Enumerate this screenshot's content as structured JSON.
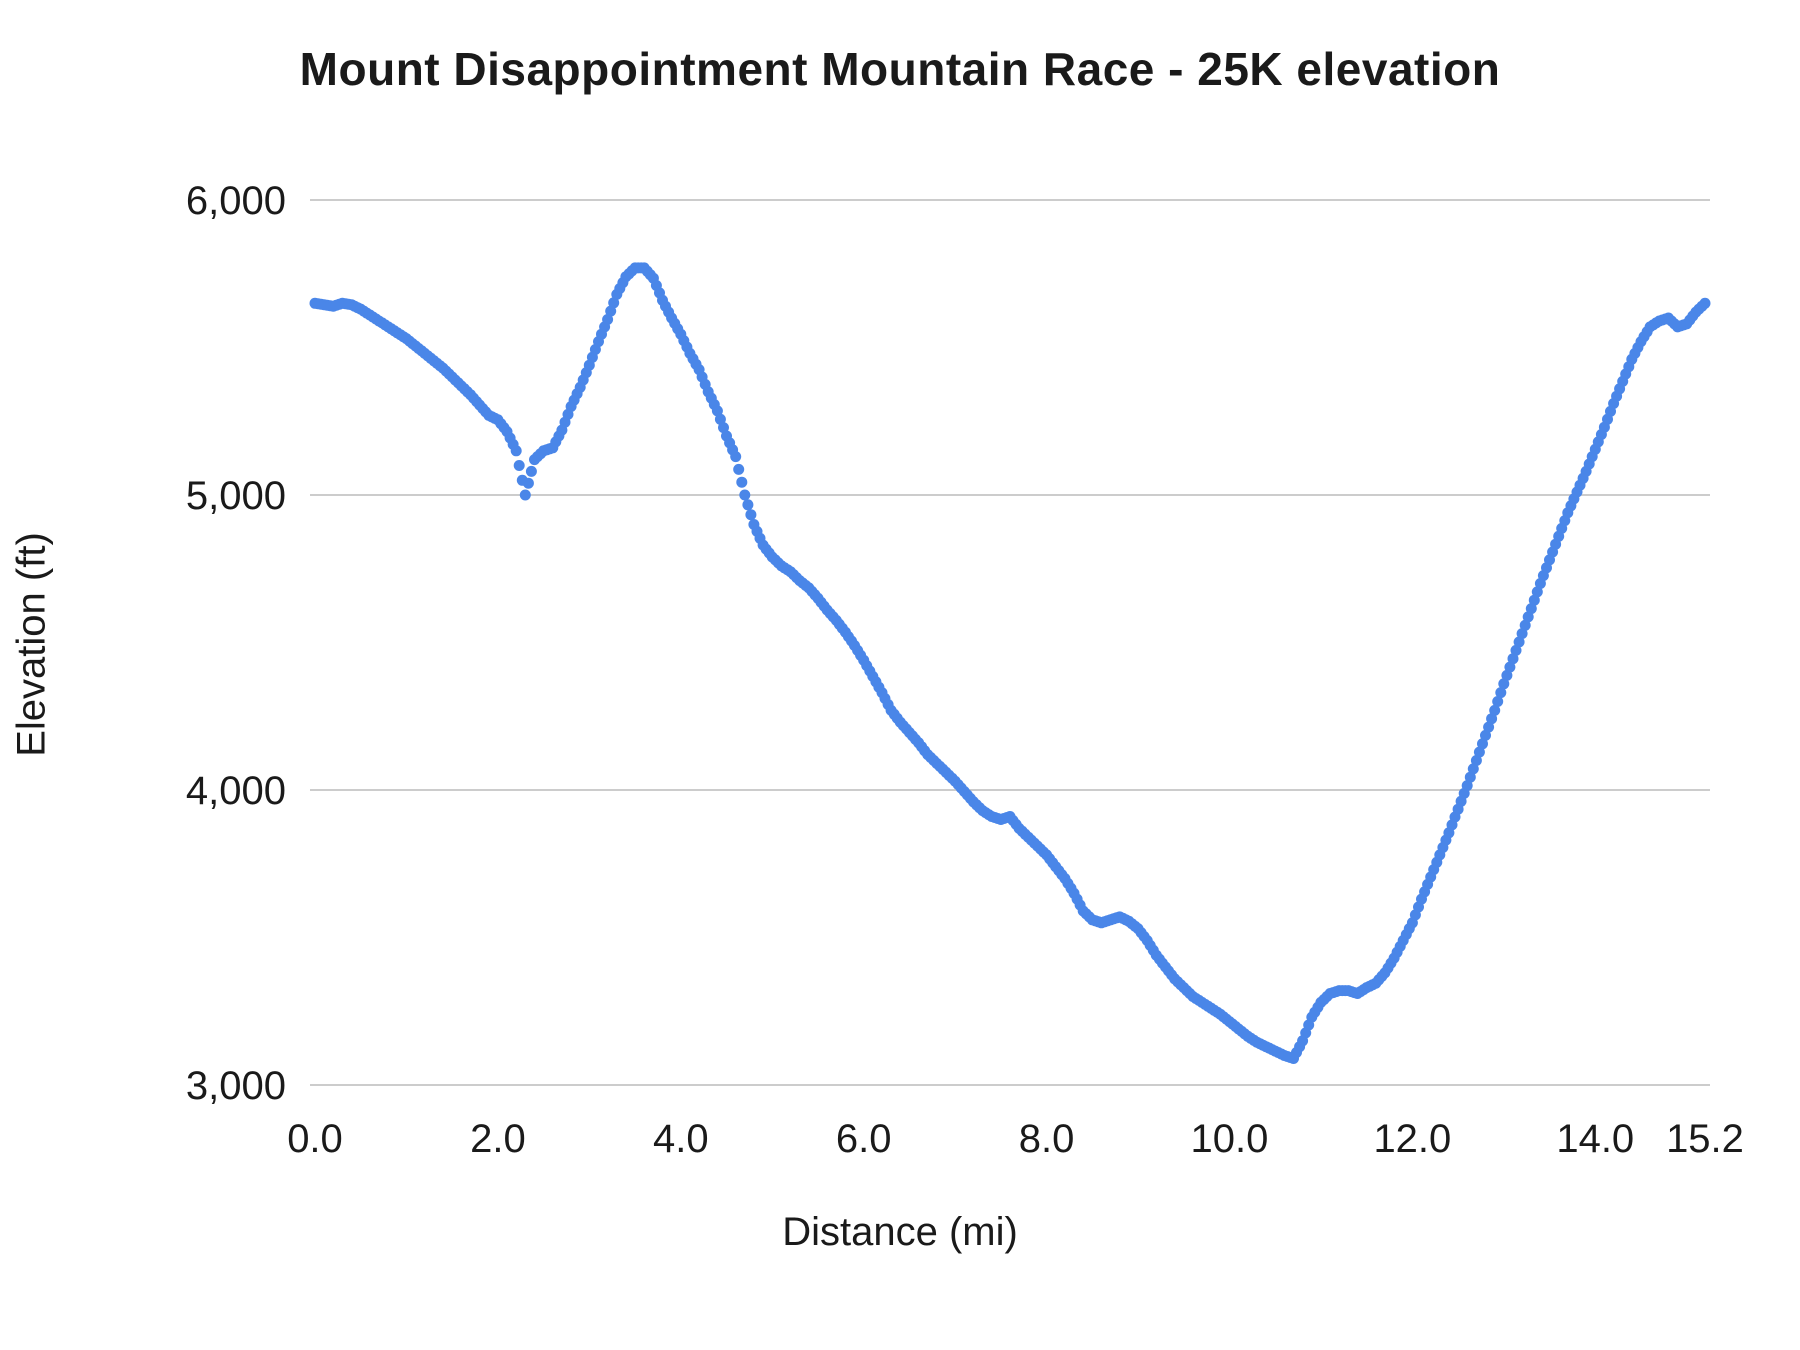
{
  "page": {
    "background": "#ffffff"
  },
  "chart_data": {
    "type": "scatter",
    "title": "Mount Disappointment Mountain Race - 25K elevation",
    "xlabel": "Distance (mi)",
    "ylabel": "Elevation (ft)",
    "xlim": [
      0,
      15.2
    ],
    "ylim": [
      3000,
      6000
    ],
    "grid": "horizontal",
    "legend": "none",
    "point_color": "#4a86e8",
    "gridline_color": "#cccccc",
    "text_color": "#1a1a1a",
    "x_ticks": {
      "values": [
        0,
        2,
        4,
        6,
        8,
        10,
        12,
        14,
        15.2
      ],
      "labels": [
        "0.0",
        "2.0",
        "4.0",
        "6.0",
        "8.0",
        "10.0",
        "12.0",
        "14.0",
        "15.2"
      ]
    },
    "y_ticks": {
      "values": [
        3000,
        4000,
        5000,
        6000
      ],
      "labels": [
        "3,000",
        "4,000",
        "5,000",
        "6,000"
      ]
    },
    "x": [
      0.0,
      0.1,
      0.2,
      0.3,
      0.4,
      0.5,
      0.6,
      0.7,
      0.8,
      0.9,
      1.0,
      1.1,
      1.2,
      1.3,
      1.4,
      1.5,
      1.6,
      1.7,
      1.8,
      1.9,
      2.0,
      2.1,
      2.2,
      2.3,
      2.4,
      2.5,
      2.6,
      2.7,
      2.8,
      2.9,
      3.0,
      3.1,
      3.2,
      3.3,
      3.4,
      3.5,
      3.6,
      3.7,
      3.8,
      3.9,
      4.0,
      4.1,
      4.2,
      4.3,
      4.4,
      4.5,
      4.6,
      4.7,
      4.8,
      4.9,
      5.0,
      5.1,
      5.2,
      5.3,
      5.4,
      5.5,
      5.6,
      5.7,
      5.8,
      5.9,
      6.0,
      6.1,
      6.2,
      6.3,
      6.4,
      6.5,
      6.6,
      6.7,
      6.8,
      6.9,
      7.0,
      7.1,
      7.2,
      7.3,
      7.4,
      7.5,
      7.6,
      7.7,
      7.8,
      7.9,
      8.0,
      8.1,
      8.2,
      8.3,
      8.4,
      8.5,
      8.6,
      8.7,
      8.8,
      8.9,
      9.0,
      9.1,
      9.2,
      9.3,
      9.4,
      9.5,
      9.6,
      9.7,
      9.8,
      9.9,
      10.0,
      10.1,
      10.2,
      10.3,
      10.4,
      10.5,
      10.6,
      10.7,
      10.8,
      10.9,
      11.0,
      11.1,
      11.2,
      11.3,
      11.4,
      11.5,
      11.6,
      11.7,
      11.8,
      11.9,
      12.0,
      12.1,
      12.2,
      12.3,
      12.4,
      12.5,
      12.6,
      12.7,
      12.8,
      12.9,
      13.0,
      13.1,
      13.2,
      13.3,
      13.4,
      13.5,
      13.6,
      13.7,
      13.8,
      13.9,
      14.0,
      14.1,
      14.2,
      14.3,
      14.4,
      14.5,
      14.6,
      14.7,
      14.8,
      14.9,
      15.0,
      15.1,
      15.2
    ],
    "elevation": [
      5650,
      5645,
      5640,
      5650,
      5645,
      5630,
      5610,
      5590,
      5570,
      5550,
      5530,
      5505,
      5480,
      5455,
      5430,
      5400,
      5370,
      5340,
      5305,
      5270,
      5255,
      5215,
      5150,
      5000,
      5120,
      5150,
      5160,
      5220,
      5300,
      5365,
      5440,
      5520,
      5595,
      5680,
      5740,
      5770,
      5770,
      5735,
      5660,
      5600,
      5545,
      5480,
      5425,
      5350,
      5285,
      5200,
      5130,
      5000,
      4900,
      4830,
      4790,
      4760,
      4740,
      4710,
      4685,
      4650,
      4610,
      4575,
      4535,
      4490,
      4440,
      4385,
      4330,
      4270,
      4230,
      4195,
      4160,
      4120,
      4090,
      4060,
      4030,
      3995,
      3960,
      3930,
      3910,
      3900,
      3910,
      3870,
      3840,
      3810,
      3780,
      3740,
      3700,
      3650,
      3590,
      3560,
      3550,
      3560,
      3570,
      3555,
      3530,
      3490,
      3440,
      3400,
      3360,
      3330,
      3300,
      3280,
      3260,
      3240,
      3215,
      3190,
      3165,
      3145,
      3130,
      3115,
      3100,
      3090,
      3150,
      3230,
      3280,
      3310,
      3320,
      3320,
      3310,
      3330,
      3345,
      3380,
      3430,
      3490,
      3550,
      3630,
      3705,
      3780,
      3855,
      3935,
      4015,
      4100,
      4185,
      4270,
      4360,
      4445,
      4530,
      4615,
      4700,
      4780,
      4860,
      4940,
      5010,
      5080,
      5155,
      5230,
      5310,
      5385,
      5460,
      5520,
      5570,
      5590,
      5600,
      5570,
      5580,
      5620,
      5650
    ]
  }
}
